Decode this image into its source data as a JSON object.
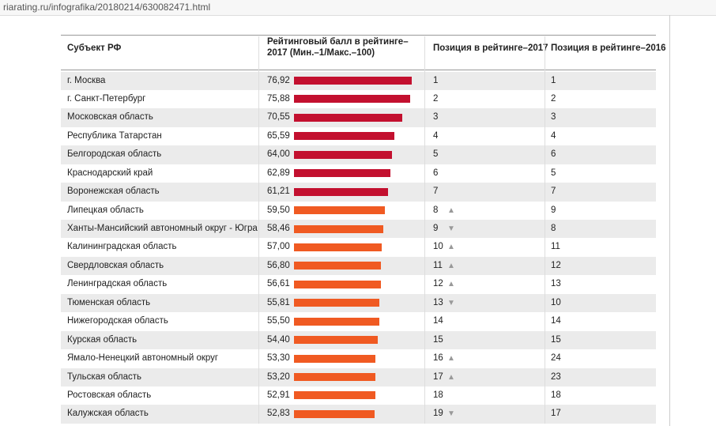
{
  "browser": {
    "url": "riarating.ru/infografika/20180214/630082471.html"
  },
  "table": {
    "headers": [
      "Субъект РФ",
      "Рейтинговый балл в рейтинге–2017 (Мин.–1/Макс.–100)",
      "Позиция в рейтинге–2017",
      "Позиция в рейтинге–2016"
    ],
    "rows": [
      {
        "name": "г. Москва",
        "score": 76.92,
        "score_label": "76,92",
        "pos2017": 1,
        "pos2016": 1,
        "color": "#c3102f"
      },
      {
        "name": "г. Санкт-Петербург",
        "score": 75.88,
        "score_label": "75,88",
        "pos2017": 2,
        "pos2016": 2,
        "color": "#c3102f"
      },
      {
        "name": "Московская область",
        "score": 70.55,
        "score_label": "70,55",
        "pos2017": 3,
        "pos2016": 3,
        "color": "#c3102f"
      },
      {
        "name": "Республика Татарстан",
        "score": 65.59,
        "score_label": "65,59",
        "pos2017": 4,
        "pos2016": 4,
        "color": "#c3102f"
      },
      {
        "name": "Белгородская область",
        "score": 64.0,
        "score_label": "64,00",
        "pos2017": 5,
        "pos2016": 6,
        "color": "#c3102f"
      },
      {
        "name": "Краснодарский край",
        "score": 62.89,
        "score_label": "62,89",
        "pos2017": 6,
        "pos2016": 5,
        "color": "#c3102f"
      },
      {
        "name": "Воронежская область",
        "score": 61.21,
        "score_label": "61,21",
        "pos2017": 7,
        "pos2016": 7,
        "color": "#c3102f"
      },
      {
        "name": "Липецкая область",
        "score": 59.5,
        "score_label": "59,50",
        "pos2017": 8,
        "change": "▲",
        "pos2016": 9,
        "color": "#f05a22"
      },
      {
        "name": "Ханты-Мансийский автономный округ - Югра",
        "score": 58.46,
        "score_label": "58,46",
        "pos2017": 9,
        "change": "▼",
        "pos2016": 8,
        "color": "#f05a22"
      },
      {
        "name": "Калининградская область",
        "score": 57.0,
        "score_label": "57,00",
        "pos2017": 10,
        "change": "▲",
        "pos2016": 11,
        "color": "#f05a22"
      },
      {
        "name": "Свердловская область",
        "score": 56.8,
        "score_label": "56,80",
        "pos2017": 11,
        "change": "▲",
        "pos2016": 12,
        "color": "#f05a22"
      },
      {
        "name": "Ленинградская область",
        "score": 56.61,
        "score_label": "56,61",
        "pos2017": 12,
        "change": "▲",
        "pos2016": 13,
        "color": "#f05a22"
      },
      {
        "name": "Тюменская область",
        "score": 55.81,
        "score_label": "55,81",
        "pos2017": 13,
        "change": "▼",
        "pos2016": 10,
        "color": "#f05a22"
      },
      {
        "name": "Нижегородская область",
        "score": 55.5,
        "score_label": "55,50",
        "pos2017": 14,
        "pos2016": 14,
        "color": "#f05a22"
      },
      {
        "name": "Курская область",
        "score": 54.4,
        "score_label": "54,40",
        "pos2017": 15,
        "pos2016": 15,
        "color": "#f05a22"
      },
      {
        "name": "Ямало-Ненецкий автономный округ",
        "score": 53.3,
        "score_label": "53,30",
        "pos2017": 16,
        "change": "▲",
        "pos2016": 24,
        "color": "#f05a22"
      },
      {
        "name": "Тульская область",
        "score": 53.2,
        "score_label": "53,20",
        "pos2017": 17,
        "change": "▲",
        "pos2016": 23,
        "color": "#f05a22"
      },
      {
        "name": "Ростовская область",
        "score": 52.91,
        "score_label": "52,91",
        "pos2017": 18,
        "pos2016": 18,
        "color": "#f05a22"
      },
      {
        "name": "Калужская область",
        "score": 52.83,
        "score_label": "52,83",
        "pos2017": 19,
        "change": "▼",
        "pos2016": 17,
        "color": "#f05a22"
      }
    ]
  }
}
